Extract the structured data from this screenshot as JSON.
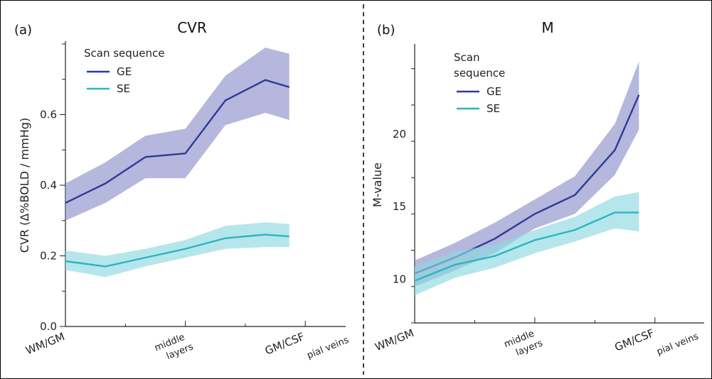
{
  "colors": {
    "GE_line": "#2e3a9a",
    "GE_band": "#8d90c9",
    "SE_line": "#2bb5c2",
    "SE_band": "#8ed8e0",
    "axis": "#222222"
  },
  "divider_style": "dashed",
  "chart_data": [
    {
      "type": "line",
      "panel_letter": "(a)",
      "title": "CVR",
      "ylabel": "CVR (Δ%BOLD / mmHg)",
      "xlabel": "",
      "ylim": [
        0.0,
        0.8
      ],
      "yticks": [
        0.0,
        0.2,
        0.4,
        0.6
      ],
      "ytick_labels": [
        "0.0",
        "0.2",
        "0.4",
        "0.6"
      ],
      "xlim": [
        0,
        6.15
      ],
      "xticks": [
        0,
        3,
        6
      ],
      "x_category_labels": [
        "WM/GM",
        "middle\nlayers",
        "GM/CSF"
      ],
      "x_extra_label": "pial veins",
      "x": [
        0,
        1,
        2,
        3,
        4,
        5,
        5.6
      ],
      "legend": {
        "title": "Scan sequence",
        "position": "top-left",
        "entries": [
          "GE",
          "SE"
        ]
      },
      "grid": false,
      "series": [
        {
          "name": "GE",
          "values": [
            0.35,
            0.405,
            0.48,
            0.49,
            0.64,
            0.698,
            0.678
          ],
          "lower": [
            0.3,
            0.35,
            0.42,
            0.42,
            0.57,
            0.605,
            0.585
          ],
          "upper": [
            0.405,
            0.465,
            0.54,
            0.56,
            0.71,
            0.79,
            0.772
          ]
        },
        {
          "name": "SE",
          "values": [
            0.185,
            0.17,
            0.195,
            0.22,
            0.25,
            0.26,
            0.255
          ],
          "lower": [
            0.16,
            0.14,
            0.17,
            0.195,
            0.22,
            0.225,
            0.225
          ],
          "upper": [
            0.215,
            0.2,
            0.22,
            0.245,
            0.285,
            0.295,
            0.29
          ]
        }
      ]
    },
    {
      "type": "line",
      "panel_letter": "(b)",
      "title": "M",
      "ylabel": "M-value",
      "xlabel": "",
      "ylim": [
        7,
        26
      ],
      "yticks": [
        10,
        15,
        20,
        25
      ],
      "ytick_labels": [
        "10",
        "15",
        "20",
        ""
      ],
      "xlim": [
        0,
        6.25
      ],
      "xticks": [
        0,
        3,
        6
      ],
      "x_category_labels": [
        "WM/GM",
        "middle\nlayers",
        "GM/CSF"
      ],
      "x_extra_label": "pial veins",
      "x": [
        0,
        1,
        2,
        3,
        4,
        5,
        6,
        6.6
      ],
      "legend": {
        "title": "Scan\nsequence",
        "position": "top-left",
        "entries": [
          "GE",
          "SE"
        ]
      },
      "grid": false,
      "series": [
        {
          "name": "GE",
          "values": [
            10.4,
            11.5,
            12.8,
            14.5,
            15.8,
            18.9,
            22.7
          ],
          "x": [
            0,
            1,
            2,
            3,
            4,
            5,
            5.6
          ],
          "lower": [
            9.5,
            10.6,
            11.8,
            13.5,
            14.5,
            17.2,
            20.3
          ],
          "upper": [
            11.3,
            12.5,
            13.9,
            15.5,
            17.1,
            20.7,
            25.0
          ]
        },
        {
          "name": "SE",
          "values": [
            9.9,
            11.0,
            11.6,
            12.7,
            13.4,
            14.6,
            14.6
          ],
          "x": [
            0,
            1,
            2,
            3,
            4,
            5,
            5.6
          ],
          "lower": [
            8.9,
            10.1,
            10.8,
            11.8,
            12.6,
            13.5,
            13.3
          ],
          "upper": [
            10.9,
            11.9,
            12.4,
            13.4,
            14.3,
            15.7,
            16.0
          ]
        }
      ]
    }
  ]
}
